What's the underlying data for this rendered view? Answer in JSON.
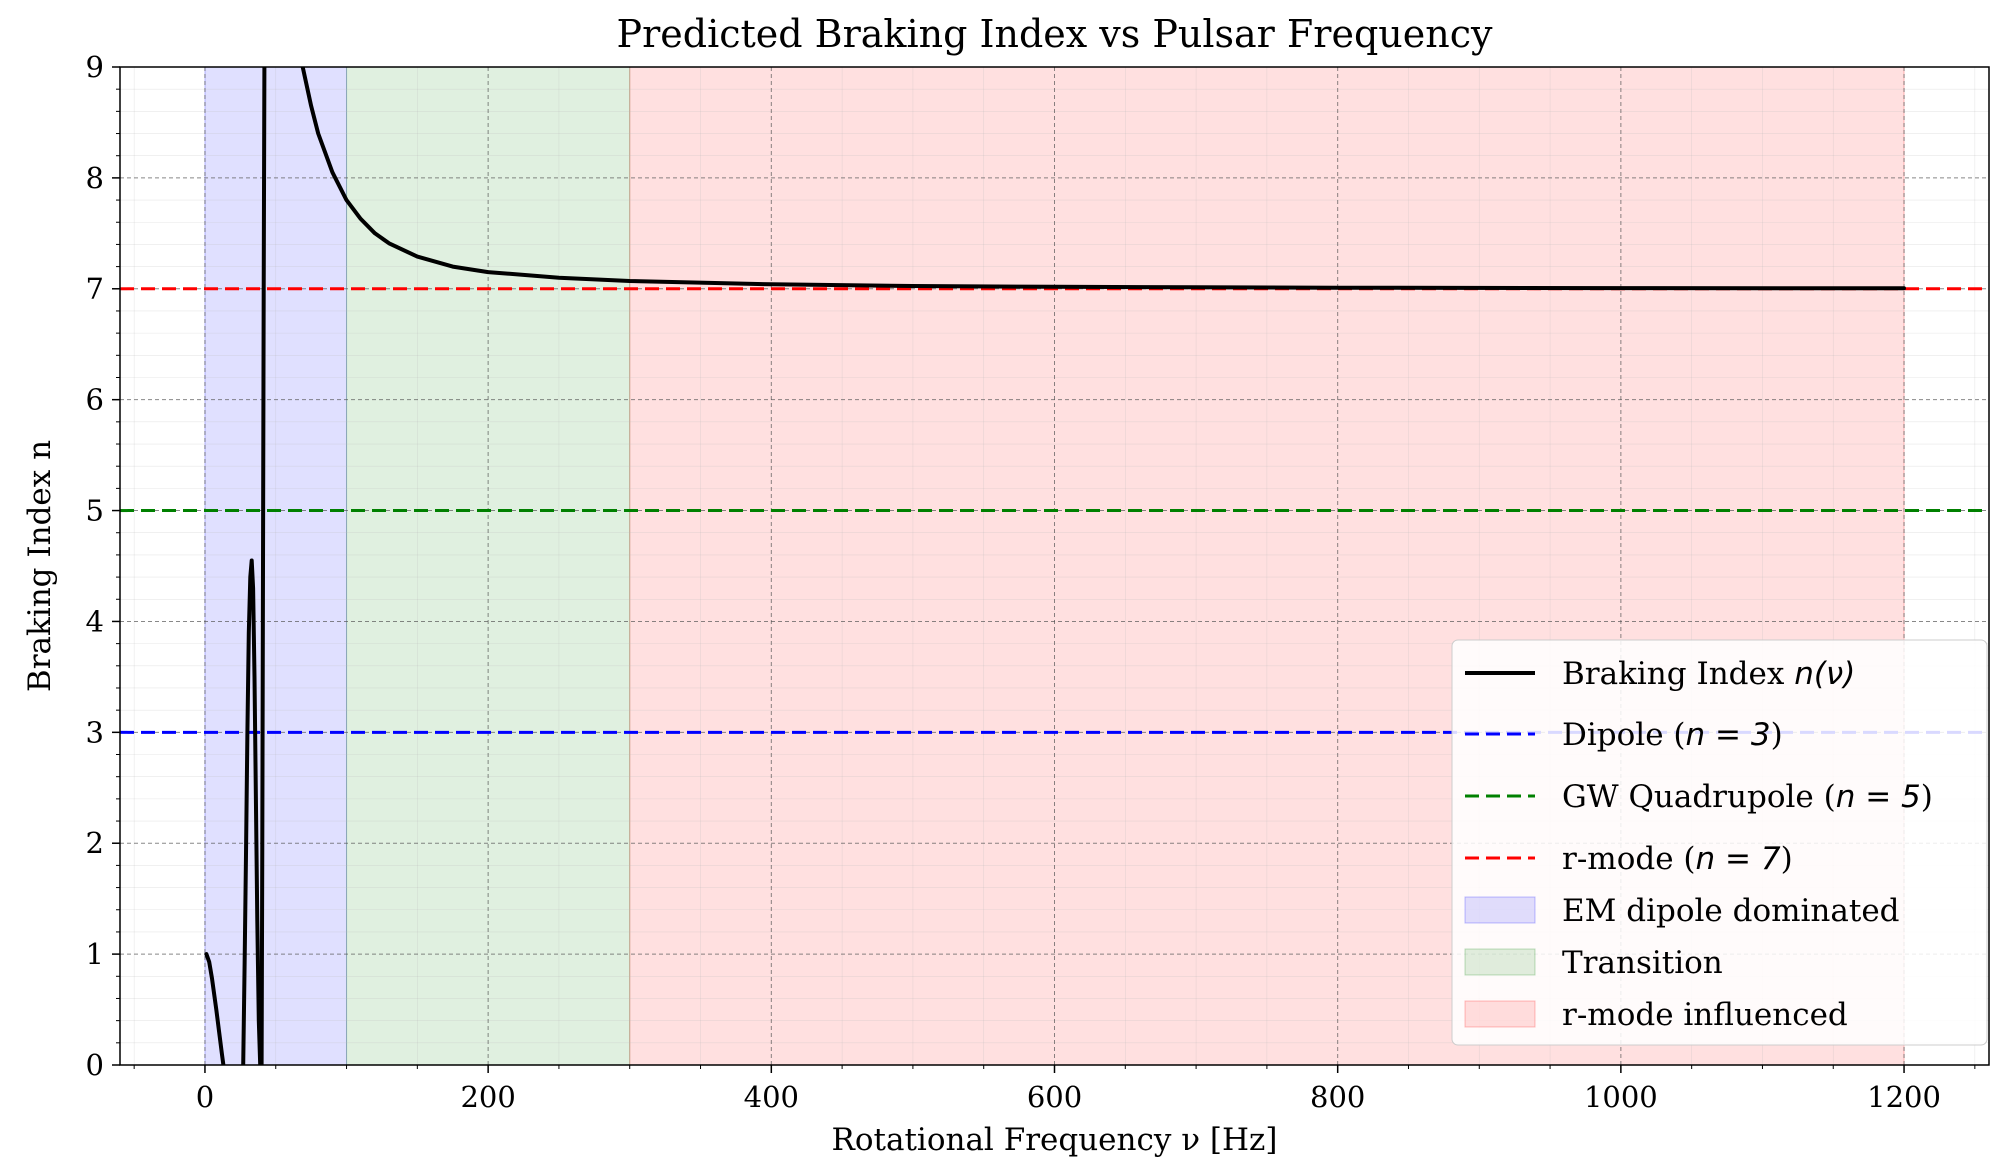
{
  "chart_data": {
    "type": "line",
    "title": "Predicted Braking Index vs Pulsar Frequency",
    "xlabel": "Rotational Frequency ν [Hz]",
    "ylabel": "Braking Index n",
    "xlim": [
      -60,
      1260
    ],
    "ylim": [
      0,
      9
    ],
    "xticks": [
      "0",
      "200",
      "400",
      "600",
      "800",
      "1000",
      "1200"
    ],
    "yticks": [
      "0",
      "1",
      "2",
      "3",
      "4",
      "5",
      "6",
      "7",
      "8",
      "9"
    ],
    "grid": true,
    "legend_position": "lower-right",
    "regions": [
      {
        "name": "EM dipole dominated",
        "from": 0,
        "to": 100,
        "color": "#0000ff"
      },
      {
        "name": "Transition",
        "from": 100,
        "to": 300,
        "color": "#008000"
      },
      {
        "name": "r-mode influenced",
        "from": 300,
        "to": 1200,
        "color": "#ff0000"
      }
    ],
    "reference_lines": [
      {
        "name": "Dipole (n = 3)",
        "y": 3,
        "color": "#0000ff",
        "style": "dashed"
      },
      {
        "name": "GW Quadrupole (n = 5)",
        "y": 5,
        "color": "#008000",
        "style": "dashed"
      },
      {
        "name": "r-mode (n = 7)",
        "y": 7,
        "color": "#ff0000",
        "style": "dashed"
      }
    ],
    "series": [
      {
        "name": "Braking Index n(ν)",
        "color": "#000000",
        "segments": [
          {
            "x": [
              1,
              3,
              5,
              8,
              10,
              12,
              13
            ],
            "y": [
              1.0,
              0.93,
              0.78,
              0.5,
              0.3,
              0.1,
              0.0
            ]
          },
          {
            "x": [
              27,
              28,
              29,
              30,
              31,
              32,
              33,
              34,
              35,
              36,
              37,
              38,
              39,
              40
            ],
            "y": [
              0.0,
              0.9,
              1.9,
              3.0,
              3.9,
              4.4,
              4.55,
              4.3,
              3.5,
              2.4,
              1.3,
              0.4,
              0.0,
              0.0
            ]
          },
          {
            "x": [
              40,
              40.5,
              41,
              41.5,
              42
            ],
            "y": [
              0.0,
              2.0,
              4.5,
              7.0,
              9.0
            ]
          },
          {
            "x": [
              69,
              75,
              80,
              90,
              100,
              110,
              120,
              130,
              150,
              175,
              200,
              250,
              300,
              400,
              500,
              600,
              700,
              800,
              1000,
              1200
            ],
            "y": [
              9.0,
              8.65,
              8.4,
              8.05,
              7.8,
              7.63,
              7.5,
              7.41,
              7.29,
              7.2,
              7.15,
              7.1,
              7.07,
              7.04,
              7.025,
              7.018,
              7.013,
              7.01,
              7.006,
              7.004
            ]
          }
        ]
      }
    ]
  },
  "legend": {
    "items": [
      {
        "label": "Braking Index ",
        "math": "n(ν)"
      },
      {
        "label": "Dipole (",
        "math": "n = 3",
        "suffix": ")"
      },
      {
        "label": "GW Quadrupole (",
        "math": "n = 5",
        "suffix": ")"
      },
      {
        "label": "r-mode (",
        "math": "n = 7",
        "suffix": ")"
      },
      {
        "label": "EM dipole dominated"
      },
      {
        "label": "Transition"
      },
      {
        "label": "r-mode influenced"
      }
    ]
  }
}
